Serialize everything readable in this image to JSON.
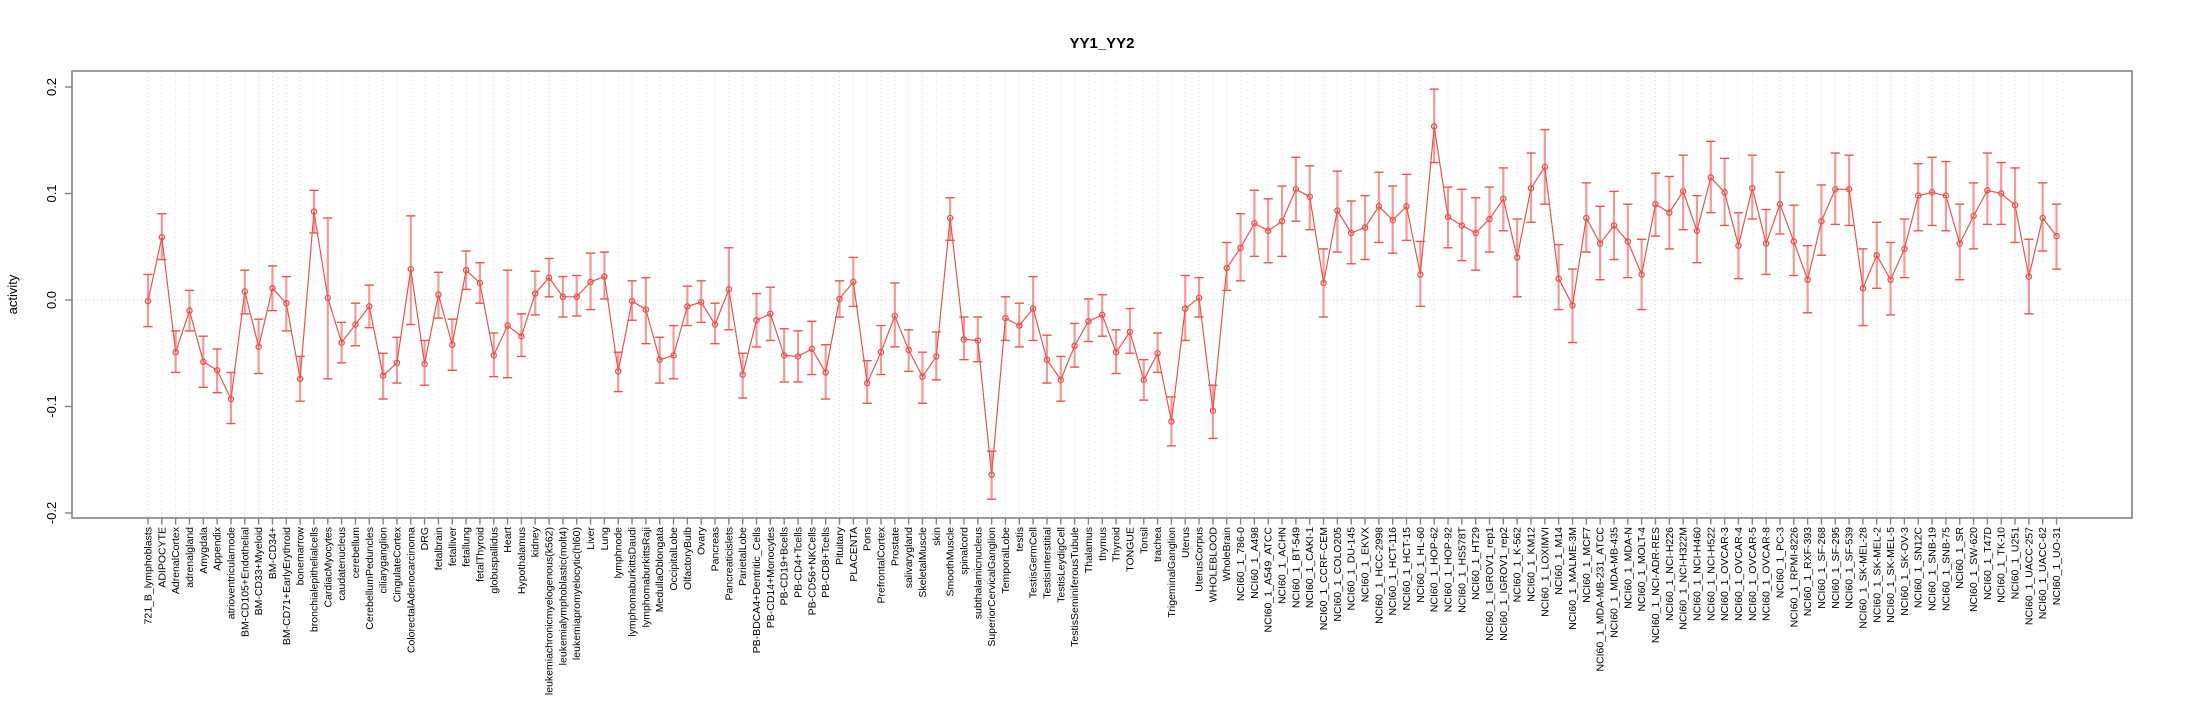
{
  "chart_data": {
    "type": "line",
    "title": "YY1_YY2",
    "xlabel": "",
    "ylabel": "activity",
    "ylim": [
      -0.2,
      0.2
    ],
    "ytick_values": [
      -0.2,
      -0.1,
      0.0,
      0.1,
      0.2
    ],
    "ytick_labels": [
      "-0.2",
      "-0.1",
      "0.0",
      "0.1",
      "0.2"
    ],
    "grid": "vertical dotted gridline per category, dotted horizontal zero line",
    "legend_position": "none",
    "marker": "open-circle",
    "line_color": "#e9544f",
    "errorbar_color": "#f49a96",
    "frame_color": "#828282",
    "gridline_color": "#dedede",
    "zeroline_color": "#c9c9c9",
    "categories": [
      "721_B_lymphoblasts",
      "ADIPOCYTE",
      "AdrenalCortex",
      "adrenalgland",
      "Amygdala",
      "Appendix",
      "atrioventricularnode",
      "BM-CD105+Endothelial",
      "BM-CD33+Myeloid",
      "BM-CD34+",
      "BM-CD71+EarlyErythroid",
      "bonemarrow",
      "bronchialepithelialcells",
      "CardiacMyocytes",
      "caudatenucleus",
      "cerebellum",
      "CerebellumPeduncles",
      "ciliaryganglion",
      "CingulateCortex",
      "ColorectalAdenocarcinoma",
      "DRG",
      "fetalbrain",
      "fetalliver",
      "fetallung",
      "fetalThyroid",
      "globuspallidus",
      "Heart",
      "Hypothalamus",
      "kidney",
      "leukemiachronicmyelogenous(k562)",
      "leukemialymphoblastic(molt4)",
      "leukemiapromyelocytic(hl60)",
      "Liver",
      "Lung",
      "lymphnode",
      "lymphomaburkittsDaudi",
      "lymphomaburkittsRaji",
      "MedullaOblongata",
      "OccipitalLobe",
      "OlfactoryBulb",
      "Ovary",
      "Pancreas",
      "Pancreaticislets",
      "ParietalLobe",
      "PB-BDCA4+Dentritic_Cells",
      "PB-CD14+Monocytes",
      "PB-CD19+Bcells",
      "PB-CD4+Tcells",
      "PB-CD56+NKCells",
      "PB-CD8+Tcells",
      "Pituitary",
      "PLACENTA",
      "Pons",
      "PrefrontalCortex",
      "Prostate",
      "salivarygland",
      "SkeletalMuscle",
      "skin",
      "SmoothMuscle",
      "spinalcord",
      "subthalamicnucleus",
      "SuperiorCervicalGanglion",
      "TemporalLobe",
      "testis",
      "TestisGermCell",
      "TestisInterstitial",
      "TestisLeydigCell",
      "TestisSeminiferousTubule",
      "Thalamus",
      "thymus",
      "Thyroid",
      "TONGUE",
      "Tonsil",
      "trachea",
      "TrigeminalGanglion",
      "Uterus",
      "UterusCorpus",
      "WHOLEBLOOD",
      "WholeBrain",
      "NCI60_1_786-0",
      "NCI60_1_A498",
      "NCI60_1_A549_ATCC",
      "NCI60_1_ACHN",
      "NCI60_1_BT-549",
      "NCI60_1_CAKI-1",
      "NCI60_1_CCRF-CEM",
      "NCI60_1_COLO205",
      "NCI60_1_DU-145",
      "NCI60_1_EKVX",
      "NCI60_1_HCC-2998",
      "NCI60_1_HCT-116",
      "NCI60_1_HCT-15",
      "NCI60_1_HL-60",
      "NCI60_1_HOP-62",
      "NCI60_1_HOP-92",
      "NCI60_1_HS578T",
      "NCI60_1_HT29",
      "NCI60_1_IGROV1_rep1",
      "NCI60_1_IGROV1_rep2",
      "NCI60_1_K-562",
      "NCI60_1_KM12",
      "NCI60_1_LOXIMVI",
      "NCI60_1_M14",
      "NCI60_1_MALME-3M",
      "NCI60_1_MCF7",
      "NCI60_1_MDA-MB-231_ATCC",
      "NCI60_1_MDA-MB-435",
      "NCI60_1_MDA-N",
      "NCI60_1_MOLT-4",
      "NCI60_1_NCI-ADR-RES",
      "NCI60_1_NCI-H226",
      "NCI60_1_NCI-H322M",
      "NCI60_1_NCI-H460",
      "NCI60_1_NCI-H522",
      "NCI60_1_OVCAR-3",
      "NCI60_1_OVCAR-4",
      "NCI60_1_OVCAR-5",
      "NCI60_1_OVCAR-8",
      "NCI60_1_PC-3",
      "NCI60_1_RPMI-8226",
      "NCI60_1_RXF-393",
      "NCI60_1_SF-268",
      "NCI60_1_SF-295",
      "NCI60_1_SF-539",
      "NCI60_1_SK-MEL-28",
      "NCI60_1_SK-MEL-2",
      "NCI60_1_SK-MEL-5",
      "NCI60_1_SK-OV-3",
      "NCI60_1_SN12C",
      "NCI60_1_SNB-19",
      "NCI60_1_SNB-75",
      "NCI60_1_SR",
      "NCI60_1_SW-620",
      "NCI60_1_T47D",
      "NCI60_1_TK-10",
      "NCI60_1_U251",
      "NCI60_1_UACC-257",
      "NCI60_1_UACC-62",
      "NCI60_1_UO-31"
    ],
    "values": [
      -0.001,
      0.059,
      -0.049,
      -0.01,
      -0.058,
      -0.066,
      -0.093,
      0.008,
      -0.044,
      0.011,
      -0.003,
      -0.074,
      0.083,
      0.002,
      -0.04,
      -0.023,
      -0.006,
      -0.071,
      -0.059,
      0.029,
      -0.06,
      0.005,
      -0.042,
      0.028,
      0.016,
      -0.052,
      -0.024,
      -0.034,
      0.006,
      0.021,
      0.003,
      0.003,
      0.017,
      0.022,
      -0.067,
      -0.001,
      -0.009,
      -0.056,
      -0.052,
      -0.006,
      -0.002,
      -0.023,
      0.01,
      -0.07,
      -0.019,
      -0.013,
      -0.052,
      -0.053,
      -0.046,
      -0.068,
      0.001,
      0.017,
      -0.078,
      -0.049,
      -0.015,
      -0.047,
      -0.072,
      -0.053,
      0.077,
      -0.037,
      -0.038,
      -0.164,
      -0.017,
      -0.024,
      -0.008,
      -0.056,
      -0.075,
      -0.043,
      -0.02,
      -0.014,
      -0.049,
      -0.03,
      -0.075,
      -0.05,
      -0.114,
      -0.008,
      0.002,
      -0.104,
      0.03,
      0.049,
      0.072,
      0.065,
      0.074,
      0.104,
      0.097,
      0.016,
      0.084,
      0.063,
      0.068,
      0.088,
      0.075,
      0.088,
      0.024,
      0.163,
      0.078,
      0.07,
      0.063,
      0.076,
      0.095,
      0.04,
      0.105,
      0.125,
      0.02,
      -0.005,
      0.077,
      0.053,
      0.07,
      0.055,
      0.024,
      0.09,
      0.082,
      0.102,
      0.065,
      0.115,
      0.101,
      0.051,
      0.105,
      0.053,
      0.09,
      0.055,
      0.019,
      0.074,
      0.104,
      0.104,
      0.011,
      0.042,
      0.019,
      0.048,
      0.098,
      0.101,
      0.098,
      0.053,
      0.079,
      0.103,
      0.1,
      0.089,
      0.022,
      0.077,
      0.06
    ],
    "err_low": [
      -0.025,
      0.038,
      -0.068,
      -0.029,
      -0.082,
      -0.087,
      -0.116,
      -0.013,
      -0.069,
      -0.01,
      -0.029,
      -0.095,
      0.063,
      -0.074,
      -0.059,
      -0.043,
      -0.026,
      -0.093,
      -0.078,
      -0.023,
      -0.08,
      -0.017,
      -0.066,
      0.01,
      -0.003,
      -0.072,
      -0.073,
      -0.053,
      -0.014,
      0.003,
      -0.016,
      -0.015,
      -0.009,
      0.001,
      -0.086,
      -0.019,
      -0.041,
      -0.078,
      -0.074,
      -0.024,
      -0.021,
      -0.041,
      -0.028,
      -0.092,
      -0.044,
      -0.038,
      -0.077,
      -0.077,
      -0.07,
      -0.093,
      -0.016,
      -0.006,
      -0.097,
      -0.07,
      -0.044,
      -0.067,
      -0.097,
      -0.075,
      0.056,
      -0.056,
      -0.058,
      -0.187,
      -0.038,
      -0.044,
      -0.038,
      -0.078,
      -0.095,
      -0.063,
      -0.039,
      -0.034,
      -0.069,
      -0.05,
      -0.094,
      -0.068,
      -0.137,
      -0.038,
      -0.016,
      -0.13,
      0.009,
      0.018,
      0.041,
      0.035,
      0.041,
      0.074,
      0.066,
      -0.016,
      0.045,
      0.034,
      0.038,
      0.054,
      0.044,
      0.056,
      -0.006,
      0.129,
      0.049,
      0.037,
      0.028,
      0.045,
      0.065,
      0.003,
      0.073,
      0.09,
      -0.009,
      -0.04,
      0.045,
      0.019,
      0.038,
      0.021,
      -0.009,
      0.06,
      0.048,
      0.066,
      0.035,
      0.082,
      0.07,
      0.02,
      0.076,
      0.024,
      0.062,
      0.023,
      -0.012,
      0.042,
      0.071,
      0.07,
      -0.024,
      0.011,
      -0.014,
      0.021,
      0.065,
      0.07,
      0.065,
      0.019,
      0.048,
      0.071,
      0.071,
      0.054,
      -0.013,
      0.046,
      0.029
    ],
    "err_high": [
      0.024,
      0.081,
      -0.029,
      0.009,
      -0.034,
      -0.046,
      -0.068,
      0.028,
      -0.018,
      0.032,
      0.022,
      -0.053,
      0.103,
      0.077,
      -0.021,
      -0.003,
      0.014,
      -0.05,
      -0.035,
      0.079,
      -0.038,
      0.026,
      -0.018,
      0.046,
      0.035,
      -0.031,
      0.028,
      -0.013,
      0.027,
      0.039,
      0.022,
      0.023,
      0.044,
      0.045,
      -0.049,
      0.018,
      0.021,
      -0.035,
      -0.024,
      0.013,
      0.018,
      -0.003,
      0.049,
      -0.05,
      0.006,
      0.012,
      -0.027,
      -0.029,
      -0.02,
      -0.042,
      0.018,
      0.04,
      -0.057,
      -0.024,
      0.016,
      -0.028,
      -0.049,
      -0.03,
      0.096,
      -0.016,
      -0.016,
      -0.142,
      0.003,
      -0.003,
      0.022,
      -0.033,
      -0.053,
      -0.022,
      0.001,
      0.005,
      -0.028,
      -0.008,
      -0.056,
      -0.031,
      -0.091,
      0.023,
      0.021,
      -0.08,
      0.054,
      0.081,
      0.103,
      0.095,
      0.107,
      0.134,
      0.126,
      0.048,
      0.121,
      0.093,
      0.098,
      0.12,
      0.107,
      0.118,
      0.055,
      0.198,
      0.106,
      0.104,
      0.096,
      0.106,
      0.124,
      0.076,
      0.138,
      0.16,
      0.052,
      0.029,
      0.11,
      0.088,
      0.102,
      0.09,
      0.057,
      0.119,
      0.116,
      0.136,
      0.098,
      0.149,
      0.133,
      0.082,
      0.136,
      0.085,
      0.12,
      0.089,
      0.051,
      0.108,
      0.138,
      0.136,
      0.048,
      0.073,
      0.054,
      0.076,
      0.128,
      0.134,
      0.13,
      0.09,
      0.11,
      0.138,
      0.129,
      0.124,
      0.057,
      0.11,
      0.09
    ]
  }
}
